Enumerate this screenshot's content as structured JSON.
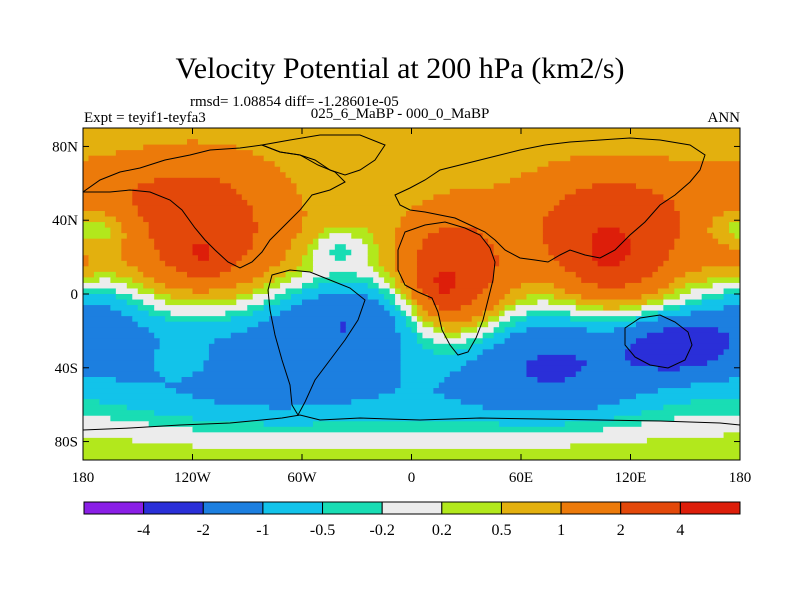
{
  "chart_data": {
    "type": "heatmap",
    "title": "Velocity Potential at 200 hPa (km2/s)",
    "stats_line": "rmsd= 1.08854 diff= -1.28601e-05",
    "left_label": "Expt = teyif1-teyfa3",
    "center_label": "025_6_MaBP - 000_0_MaBP",
    "right_label": "ANN",
    "x_ticks": [
      {
        "lon": -180,
        "label": "180"
      },
      {
        "lon": -120,
        "label": "120W"
      },
      {
        "lon": -60,
        "label": "60W"
      },
      {
        "lon": 0,
        "label": "0"
      },
      {
        "lon": 60,
        "label": "60E"
      },
      {
        "lon": 120,
        "label": "120E"
      },
      {
        "lon": 180,
        "label": "180"
      }
    ],
    "y_ticks": [
      {
        "lat": 80,
        "label": "80N"
      },
      {
        "lat": 40,
        "label": "40N"
      },
      {
        "lat": 0,
        "label": "0"
      },
      {
        "lat": -40,
        "label": "40S"
      },
      {
        "lat": -80,
        "label": "80S"
      }
    ],
    "xlim": [
      -180,
      180
    ],
    "ylim": [
      -90,
      90
    ],
    "levels": [
      -4,
      -2,
      -1,
      -0.5,
      -0.2,
      0.2,
      0.5,
      1,
      2,
      4
    ],
    "level_labels": [
      "-4",
      "-2",
      "-1",
      "-0.5",
      "-0.2",
      "0.2",
      "0.5",
      "1",
      "2",
      "4"
    ],
    "colors": [
      "#8a1fe6",
      "#2a2fd8",
      "#1c7fe0",
      "#12c3ea",
      "#19ddb4",
      "#ececec",
      "#b2e81c",
      "#e3b00e",
      "#ec7a0a",
      "#e3480a",
      "#dd1e0a"
    ],
    "background_level": 0.6,
    "features": [
      {
        "lon": -115,
        "lat": 30,
        "value": 2.2,
        "rlon": 45,
        "rlat": 38
      },
      {
        "lon": -115,
        "lat": 22,
        "value": 1.8,
        "rlon": 12,
        "rlat": 10
      },
      {
        "lon": 22,
        "lat": 8,
        "value": 2.8,
        "rlon": 28,
        "rlat": 32
      },
      {
        "lon": 18,
        "lat": 5,
        "value": 1.7,
        "rlon": 10,
        "rlat": 10
      },
      {
        "lon": 110,
        "lat": 38,
        "value": 1.8,
        "rlon": 55,
        "rlat": 30
      },
      {
        "lon": 110,
        "lat": 22,
        "value": 1.9,
        "rlon": 28,
        "rlat": 28
      },
      {
        "lon": 108,
        "lat": 22,
        "value": 1.6,
        "rlon": 9,
        "rlat": 9
      },
      {
        "lon": -150,
        "lat": 55,
        "value": 0.7,
        "rlon": 55,
        "rlat": 20
      },
      {
        "lon": -90,
        "lat": -30,
        "value": -1.9,
        "rlon": 95,
        "rlat": 35
      },
      {
        "lon": -175,
        "lat": -15,
        "value": -1.3,
        "rlon": 35,
        "rlat": 30
      },
      {
        "lon": -30,
        "lat": -12,
        "value": -1.5,
        "rlon": 40,
        "rlat": 22
      },
      {
        "lon": 80,
        "lat": -35,
        "value": -2.4,
        "rlon": 60,
        "rlat": 28
      },
      {
        "lon": 145,
        "lat": -28,
        "value": -2.2,
        "rlon": 28,
        "rlat": 16
      },
      {
        "lon": 0,
        "lat": -60,
        "value": -0.9,
        "rlon": 200,
        "rlat": 22
      },
      {
        "lon": -175,
        "lat": 35,
        "value": -1.2,
        "rlon": 25,
        "rlat": 12
      },
      {
        "lon": -40,
        "lat": 25,
        "value": -0.8,
        "rlon": 18,
        "rlat": 10
      },
      {
        "lon": -125,
        "lat": -35,
        "value": 0.6,
        "rlon": 15,
        "rlat": 10
      },
      {
        "lon": 175,
        "lat": 18,
        "value": 0.7,
        "rlon": 18,
        "rlat": 14
      }
    ]
  }
}
